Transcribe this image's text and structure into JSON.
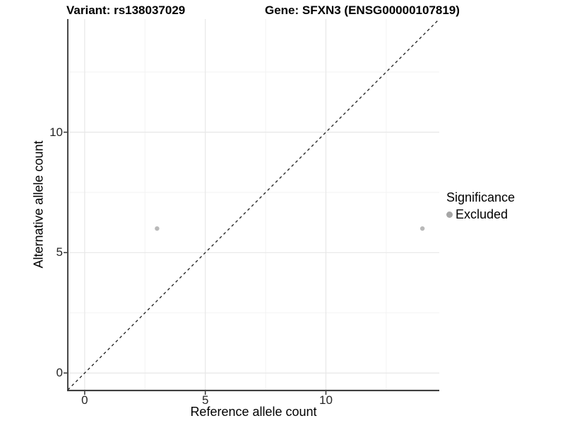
{
  "titles": {
    "variant": "Variant: rs138037029",
    "gene": "Gene: SFXN3 (ENSG00000107819)"
  },
  "legend": {
    "title": "Significance",
    "items": [
      {
        "label": "Excluded",
        "color": "#a6a6a6"
      }
    ]
  },
  "chart_data": {
    "type": "scatter",
    "title": "Variant: rs138037029 — Gene: SFXN3 (ENSG00000107819)",
    "xlabel": "Reference allele count",
    "ylabel": "Alternative allele count",
    "xlim": [
      -0.7,
      14.7
    ],
    "ylim": [
      -0.7,
      14.7
    ],
    "x_ticks": [
      0,
      5,
      10
    ],
    "y_ticks": [
      0,
      5,
      10
    ],
    "x_minor_ticks": [
      2.5,
      7.5,
      12.5
    ],
    "y_minor_ticks": [
      2.5,
      7.5,
      12.5
    ],
    "grid": "on",
    "legend_position": "right",
    "series": [
      {
        "name": "Excluded",
        "color": "#b9b9b9",
        "point_radius": 3.2,
        "points": [
          {
            "x": 3,
            "y": 6
          },
          {
            "x": 14,
            "y": 6
          }
        ]
      }
    ],
    "reference_line": {
      "type": "identity",
      "slope": 1,
      "intercept": 0,
      "style": "dashed",
      "color": "#1a1a1a"
    },
    "colors": {
      "grid_major": "#e7e7e7",
      "grid_minor": "#f3f3f3",
      "axis_line": "#333333",
      "tick_mark": "#333333",
      "tick_label": "#262626"
    }
  }
}
